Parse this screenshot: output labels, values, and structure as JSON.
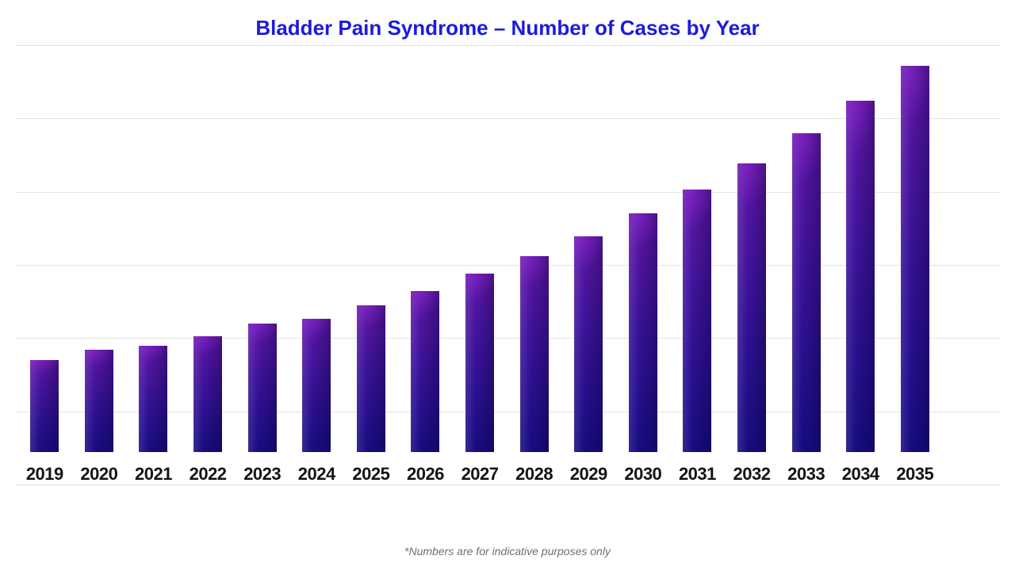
{
  "chart_data": {
    "type": "bar",
    "title": "Bladder Pain Syndrome – Number of Cases by Year",
    "categories": [
      "2019",
      "2020",
      "2021",
      "2022",
      "2023",
      "2024",
      "2025",
      "2026",
      "2027",
      "2028",
      "2029",
      "2030",
      "2031",
      "2032",
      "2033",
      "2034",
      "2035"
    ],
    "values": [
      1.36,
      1.51,
      1.57,
      1.71,
      1.89,
      1.97,
      2.16,
      2.38,
      2.63,
      2.89,
      3.18,
      3.52,
      3.87,
      4.26,
      4.7,
      5.18,
      5.7
    ],
    "value_unit": "relative gridline units (chart shows no numeric y-axis labels)",
    "xlabel": "",
    "ylabel": "",
    "ylim": [
      0,
      6
    ],
    "grid": "horizontal gridlines every 1 unit, 7 lines including baseline",
    "legend": "none",
    "footnote": "*Numbers are for indicative purposes only"
  },
  "theme": {
    "title_color": "#1b1be0",
    "bar_top": "#6117a8",
    "bar_mid": "#3a1298",
    "bar_bottom": "#150c80",
    "grid": "#e4e4e4",
    "axis": "#d8d8d8",
    "label": "#141414",
    "footnote": "#6f6f6f",
    "bg": "#ffffff"
  }
}
